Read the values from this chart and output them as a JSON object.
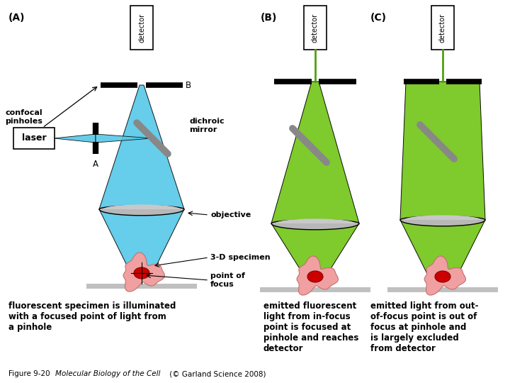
{
  "bg_color": "#ffffff",
  "blue_light": "#55c8e8",
  "green_light": "#78c820",
  "green_dark": "#50a010",
  "gray_mirror": "#888888",
  "gray_obj": "#b8b8b8",
  "gray_stage": "#c0c0c0",
  "pink_specimen": "#f0a0a0",
  "red_focus": "#cc0000",
  "label_A": "(A)",
  "label_B": "(B)",
  "label_C": "(C)",
  "detector_label": "detector",
  "text_A": "fluorescent specimen is illuminated\nwith a focused point of light from\na pinhole",
  "text_B": "emitted fluorescent\nlight from in-focus\npoint is focused at\npinhole and reaches\ndetector",
  "text_C": "emitted light from out-\nof-focus point is out of\nfocus at pinhole and\nis largely excluded\nfrom detector"
}
